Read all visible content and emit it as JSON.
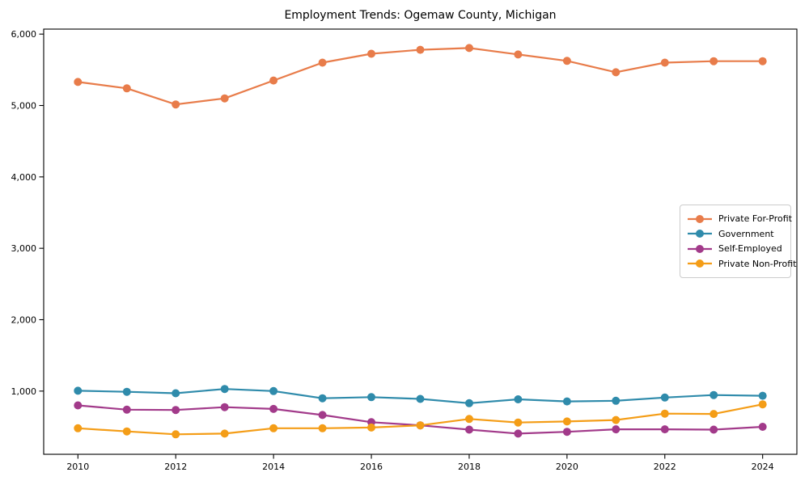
{
  "chart_data": {
    "type": "line",
    "title": "Employment Trends: Ogemaw County, Michigan",
    "xlabel": "",
    "ylabel": "",
    "x": [
      2010,
      2011,
      2012,
      2013,
      2014,
      2015,
      2016,
      2017,
      2018,
      2019,
      2020,
      2021,
      2022,
      2023,
      2024
    ],
    "series": [
      {
        "name": "Private For-Profit",
        "color": "#e87c4a",
        "values": [
          5330,
          5240,
          5015,
          5100,
          5350,
          5600,
          5725,
          5780,
          5805,
          5715,
          5625,
          5465,
          5600,
          5620,
          5620
        ]
      },
      {
        "name": "Government",
        "color": "#2f8bab",
        "values": [
          1005,
          990,
          970,
          1030,
          1000,
          900,
          915,
          890,
          830,
          885,
          855,
          865,
          910,
          945,
          935
        ]
      },
      {
        "name": "Self-Employed",
        "color": "#a23a8a",
        "values": [
          800,
          740,
          735,
          775,
          750,
          665,
          565,
          520,
          460,
          405,
          430,
          465,
          465,
          460,
          500
        ]
      },
      {
        "name": "Private Non-Profit",
        "color": "#f49d17",
        "values": [
          480,
          435,
          395,
          405,
          480,
          480,
          490,
          520,
          610,
          560,
          575,
          595,
          685,
          680,
          815
        ]
      }
    ],
    "xlim": [
      2009.3,
      2024.7
    ],
    "ylim": [
      115,
      6070
    ],
    "xticks": {
      "values": [
        2010,
        2012,
        2014,
        2016,
        2018,
        2020,
        2022,
        2024
      ],
      "labels": [
        "2010",
        "2012",
        "2014",
        "2016",
        "2018",
        "2020",
        "2022",
        "2024"
      ]
    },
    "yticks": {
      "values": [
        1000,
        2000,
        3000,
        4000,
        5000,
        6000
      ],
      "labels": [
        "1,000",
        "2,000",
        "3,000",
        "4,000",
        "5,000",
        "6,000"
      ]
    },
    "grid": false,
    "legend_position": "center right",
    "marker": "circle",
    "axis_color": "#000000",
    "tick_label_color": "#000000"
  }
}
